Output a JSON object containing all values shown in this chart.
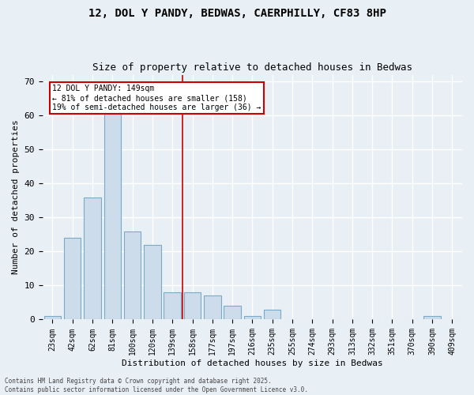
{
  "title": "12, DOL Y PANDY, BEDWAS, CAERPHILLY, CF83 8HP",
  "subtitle": "Size of property relative to detached houses in Bedwas",
  "xlabel": "Distribution of detached houses by size in Bedwas",
  "ylabel": "Number of detached properties",
  "bin_labels": [
    "23sqm",
    "42sqm",
    "62sqm",
    "81sqm",
    "100sqm",
    "120sqm",
    "139sqm",
    "158sqm",
    "177sqm",
    "197sqm",
    "216sqm",
    "235sqm",
    "255sqm",
    "274sqm",
    "293sqm",
    "313sqm",
    "332sqm",
    "351sqm",
    "370sqm",
    "390sqm",
    "409sqm"
  ],
  "bar_heights": [
    1,
    24,
    36,
    62,
    26,
    22,
    8,
    8,
    7,
    4,
    1,
    3,
    0,
    0,
    0,
    0,
    0,
    0,
    0,
    1,
    0
  ],
  "bar_color": "#ccdcea",
  "bar_edge_color": "#7aaac8",
  "vline_color": "#cc0000",
  "vline_bin_index": 7,
  "annotation_text": "12 DOL Y PANDY: 149sqm\n← 81% of detached houses are smaller (158)\n19% of semi-detached houses are larger (36) →",
  "annotation_box_color": "#cc0000",
  "ylim": [
    0,
    72
  ],
  "yticks": [
    0,
    10,
    20,
    30,
    40,
    50,
    60,
    70
  ],
  "background_color": "#e8eff5",
  "grid_color": "#ffffff",
  "footnote": "Contains HM Land Registry data © Crown copyright and database right 2025.\nContains public sector information licensed under the Open Government Licence v3.0.",
  "title_fontsize": 10,
  "subtitle_fontsize": 9,
  "ylabel_fontsize": 8,
  "xlabel_fontsize": 8,
  "tick_fontsize": 7,
  "annot_fontsize": 7
}
